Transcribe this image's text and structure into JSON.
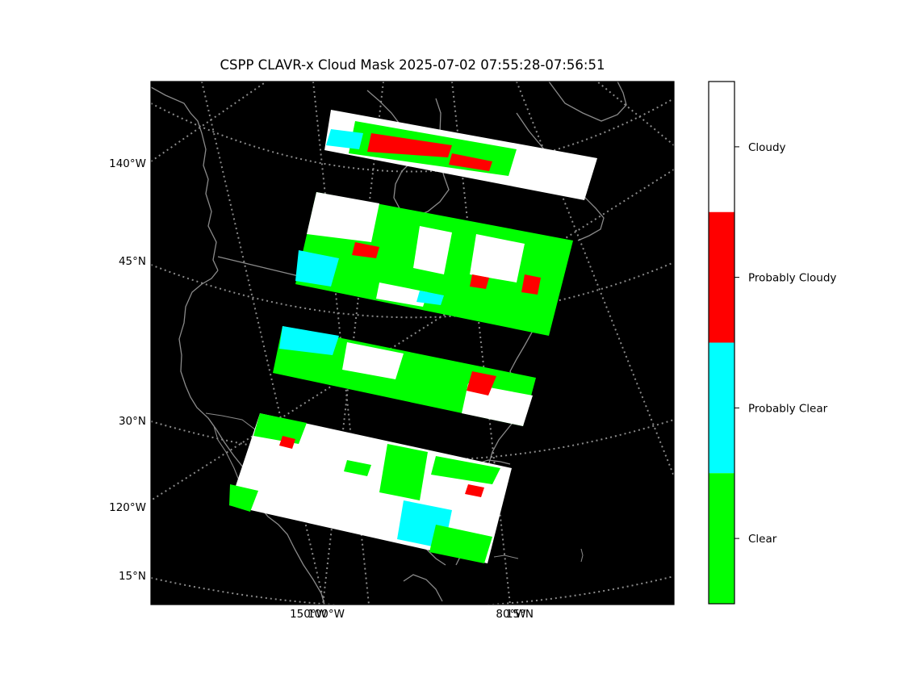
{
  "title": "CSPP CLAVR-x Cloud Mask 2025-07-02 07:55:28-07:56:51",
  "map": {
    "background": "#000000",
    "coastline_color": "#8a8a8a",
    "graticule_color": "#8a8a8a",
    "left_labels": [
      "140°W",
      "45°N",
      "30°N",
      "120°W",
      "15°N"
    ],
    "bottom_labels": [
      "150°W",
      "100°W",
      "80°W",
      "15°N"
    ]
  },
  "colorbar": {
    "categories": [
      {
        "label": "Cloudy",
        "color": "#ffffff"
      },
      {
        "label": "Probably Cloudy",
        "color": "#ff0000"
      },
      {
        "label": "Probably Clear",
        "color": "#00ffff"
      },
      {
        "label": "Clear",
        "color": "#00ff00"
      }
    ]
  },
  "granules": [
    {
      "index": 1,
      "dominant": "mixed clear / probably cloudy / cloudy"
    },
    {
      "index": 2,
      "dominant": "mostly clear"
    },
    {
      "index": 3,
      "dominant": "mostly clear"
    },
    {
      "index": 4,
      "dominant": "mostly cloudy"
    }
  ]
}
